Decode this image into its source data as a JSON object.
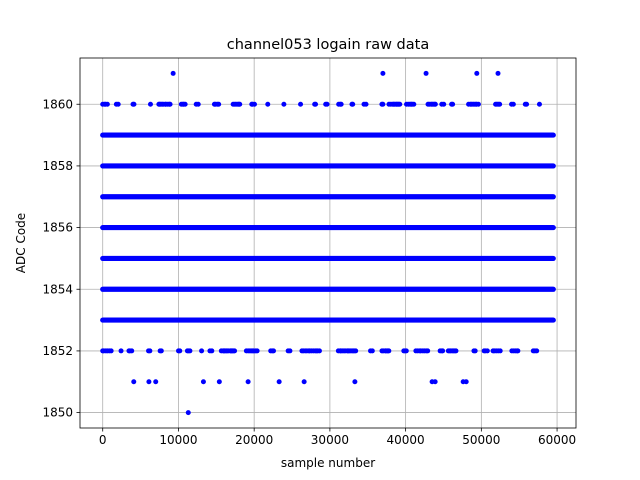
{
  "chart_data": {
    "type": "scatter",
    "title": "channel053 logain raw data",
    "xlabel": "sample number",
    "ylabel": "ADC Code",
    "xlim": [
      -3000,
      62500
    ],
    "ylim": [
      1849.5,
      1861.5
    ],
    "x_ticks": [
      0,
      10000,
      20000,
      30000,
      40000,
      50000,
      60000
    ],
    "y_ticks": [
      1850,
      1852,
      1854,
      1856,
      1858,
      1860
    ],
    "grid": true,
    "colors": {
      "marker": "#0000ff",
      "grid": "#b0b0b0",
      "axes": "#000000",
      "background": "#ffffff"
    },
    "dense_bands": [
      {
        "y": 1853,
        "x_range": [
          0,
          59500
        ]
      },
      {
        "y": 1854,
        "x_range": [
          0,
          59500
        ]
      },
      {
        "y": 1855,
        "x_range": [
          0,
          59500
        ]
      },
      {
        "y": 1856,
        "x_range": [
          0,
          59500
        ]
      },
      {
        "y": 1857,
        "x_range": [
          0,
          59500
        ]
      },
      {
        "y": 1858,
        "x_range": [
          0,
          59500
        ]
      },
      {
        "y": 1859,
        "x_range": [
          0,
          59500
        ]
      }
    ],
    "sparse_bands": [
      {
        "y": 1852,
        "x_range": [
          0,
          59500
        ]
      },
      {
        "y": 1860,
        "x_range": [
          0,
          59500
        ]
      }
    ],
    "points": [
      {
        "x": 11300,
        "y": 1850
      },
      {
        "x": 4100,
        "y": 1851
      },
      {
        "x": 6100,
        "y": 1851
      },
      {
        "x": 7000,
        "y": 1851
      },
      {
        "x": 13300,
        "y": 1851
      },
      {
        "x": 15400,
        "y": 1851
      },
      {
        "x": 19200,
        "y": 1851
      },
      {
        "x": 23300,
        "y": 1851
      },
      {
        "x": 26600,
        "y": 1851
      },
      {
        "x": 33300,
        "y": 1851
      },
      {
        "x": 43500,
        "y": 1851
      },
      {
        "x": 43900,
        "y": 1851
      },
      {
        "x": 47600,
        "y": 1851
      },
      {
        "x": 48000,
        "y": 1851
      },
      {
        "x": 9300,
        "y": 1861
      },
      {
        "x": 37000,
        "y": 1861
      },
      {
        "x": 42700,
        "y": 1861
      },
      {
        "x": 49400,
        "y": 1861
      },
      {
        "x": 52200,
        "y": 1861
      }
    ]
  }
}
